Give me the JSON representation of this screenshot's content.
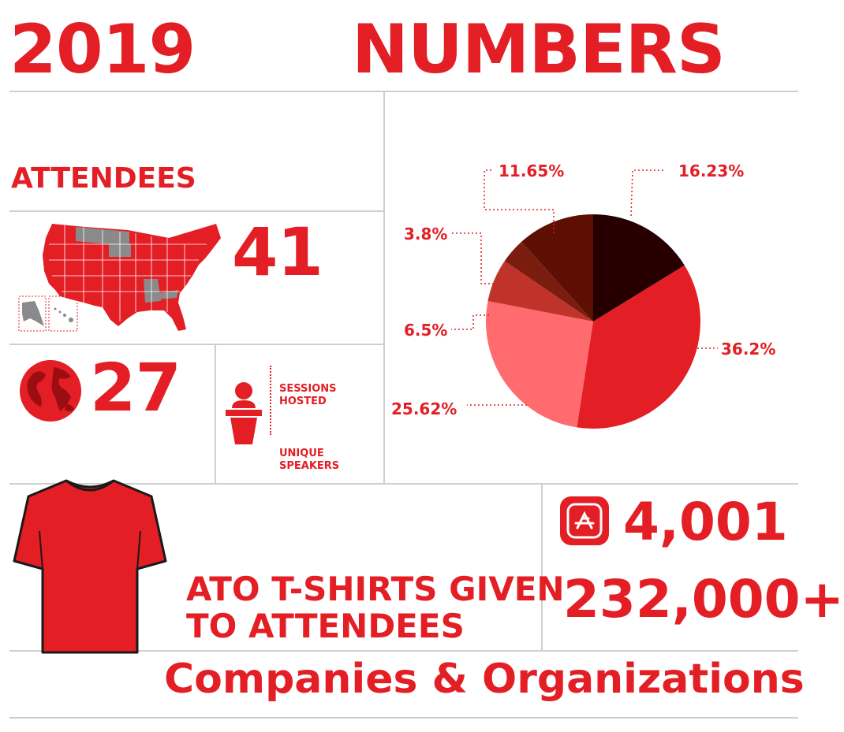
{
  "header": {
    "year": "2019",
    "title": "NUMBERS"
  },
  "attendees": {
    "heading": "ATTENDEES",
    "states_count": "41",
    "countries_count": "27"
  },
  "sessions": {
    "sessions_label": "SESSIONS\nHOSTED",
    "speakers_label": "UNIQUE\nSPEAKERS"
  },
  "tshirts": {
    "caption_line1": "ATO T-SHIRTS GIVEN",
    "caption_line2": "TO ATTENDEES"
  },
  "apps": {
    "count_1": "4,001",
    "count_2": "232,000+"
  },
  "footer": {
    "label": "Companies & Organizations"
  },
  "colors": {
    "brand_red": "#e31e24",
    "divider": "#cfcfcf",
    "map_gray": "#8a8a8a"
  },
  "chart_data": {
    "type": "pie",
    "title": "",
    "slices": [
      {
        "label": "16.23%",
        "value": 16.23,
        "color": "#260000"
      },
      {
        "label": "36.2%",
        "value": 36.2,
        "color": "#e31e24"
      },
      {
        "label": "25.62%",
        "value": 25.62,
        "color": "#ff6b6f"
      },
      {
        "label": "6.5%",
        "value": 6.5,
        "color": "#c0332a"
      },
      {
        "label": "3.8%",
        "value": 3.8,
        "color": "#7a1c0e"
      },
      {
        "label": "11.65%",
        "value": 11.65,
        "color": "#5e0f04"
      }
    ]
  }
}
